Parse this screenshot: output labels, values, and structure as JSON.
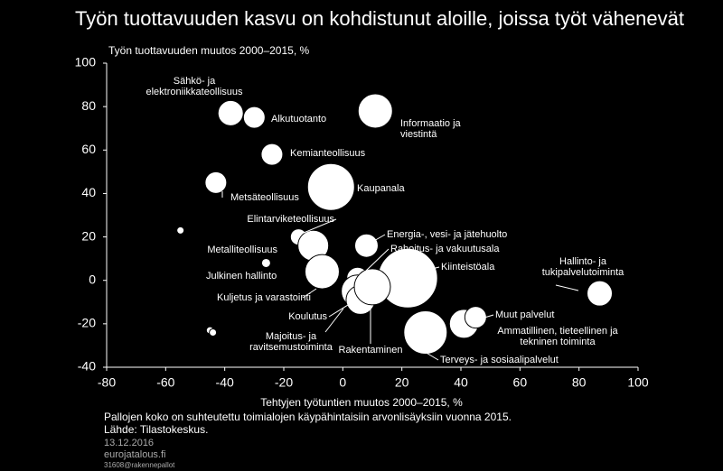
{
  "chart_data": {
    "type": "scatter",
    "title": "Työn tuottavuuden kasvu on kohdistunut aloille, joissa työt vähenevät",
    "ylabel": "Työn tuottavuuden muutos 2000–2015,  %",
    "xlabel": "Tehtyjen työtuntien muutos 2000–2015, %",
    "color": "#ffffff",
    "xlim": [
      -80,
      100
    ],
    "ylim": [
      -40,
      100
    ],
    "xticks": [
      -80,
      -60,
      -40,
      -20,
      0,
      20,
      40,
      60,
      80,
      100
    ],
    "yticks": [
      -40,
      -20,
      0,
      20,
      40,
      60,
      80,
      100
    ],
    "x": [
      -38,
      -30,
      11,
      -24,
      -43,
      -4,
      -55,
      -15,
      -10,
      8,
      -26,
      5,
      22,
      -7,
      5,
      6,
      10,
      28,
      41,
      45,
      87,
      -45,
      -44
    ],
    "y": [
      77,
      75,
      78,
      58,
      45,
      43,
      23,
      20,
      16,
      16,
      8,
      1,
      1,
      4,
      -5,
      -9,
      -3,
      -24,
      -20,
      -17,
      -6,
      -23,
      -24
    ],
    "sizes": [
      196,
      144,
      361,
      144,
      144,
      676,
      16,
      81,
      289,
      169,
      25,
      144,
      1089,
      361,
      324,
      256,
      400,
      576,
      256,
      144,
      196,
      16,
      16
    ],
    "labels": [
      [
        "Sähkö- ja",
        "elektroniikkateollisuus"
      ],
      [
        "Alkutuotanto"
      ],
      [
        "Informaatio ja",
        "viestintä"
      ],
      [
        "Kemianteollisuus"
      ],
      [
        "Metsäteollisuus"
      ],
      [
        "Kaupanala"
      ],
      null,
      [
        "Elintarviketeollisuus"
      ],
      [
        "Metalliteollisuus"
      ],
      [
        "Energia-, vesi- ja jätehuolto"
      ],
      [
        "Julkinen hallinto"
      ],
      [
        "Rahoitus- ja vakuutusala"
      ],
      [
        "Kiinteistöala"
      ],
      [
        "Kuljetus ja varastointi"
      ],
      [
        "Koulutus"
      ],
      [
        "Majoitus- ja",
        "ravitsemustoiminta"
      ],
      [
        "Rakentaminen"
      ],
      [
        "Terveys- ja sosiaalipalvelut"
      ],
      [
        "Ammatillinen, tieteellinen ja",
        "tekninen toiminta"
      ],
      [
        "Muut palvelut"
      ],
      [
        "Hallinto- ja",
        "tukipalvelutoiminta"
      ],
      null,
      null
    ],
    "notes": [
      "Pallojen koko on suhteutettu  toimialojen käypähintaisiin arvonlisäyksiin vuonna 2015.",
      "Lähde: Tilastokeskus.",
      "13.12.2016",
      "eurojatalous.fi",
      "31608@rakennepallot"
    ]
  }
}
